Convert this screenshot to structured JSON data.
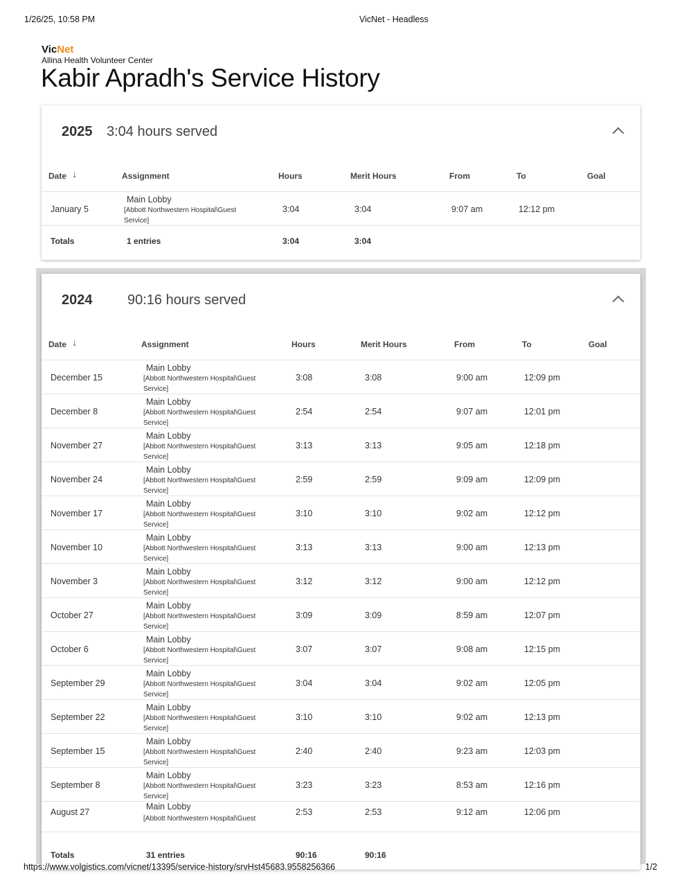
{
  "print": {
    "datetime": "1/26/25, 10:58 PM",
    "page_title": "VicNet - Headless",
    "url": "https://www.volgistics.com/vicnet/13395/service-history/srvHst45683.9558256366",
    "page_num": "1/2"
  },
  "brand": {
    "vic": "Vic",
    "net": "Net",
    "accent": "#f28c13",
    "org": "Allina Health Volunteer Center"
  },
  "title": "Kabir Apradh's Service History",
  "columns": {
    "date": "Date",
    "assignment": "Assignment",
    "hours": "Hours",
    "merit": "Merit Hours",
    "from": "From",
    "to": "To",
    "goal": "Goal"
  },
  "years": [
    {
      "year": "2025",
      "served": "3:04 hours served",
      "rows": [
        {
          "date": "January 5",
          "assignment": "Main Lobby",
          "location": "[Abbott Northwestern Hospital\\Guest Service]",
          "hours": "3:04",
          "merit": "3:04",
          "from": "9:07 am",
          "to": "12:12 pm"
        }
      ],
      "totals": {
        "label": "Totals",
        "entries": "1 entries",
        "hours": "3:04",
        "merit": "3:04"
      }
    },
    {
      "year": "2024",
      "served": "90:16 hours served",
      "rows": [
        {
          "date": "December 15",
          "assignment": "Main Lobby",
          "location": "[Abbott Northwestern Hospital\\Guest Service]",
          "hours": "3:08",
          "merit": "3:08",
          "from": "9:00 am",
          "to": "12:09 pm"
        },
        {
          "date": "December 8",
          "assignment": "Main Lobby",
          "location": "[Abbott Northwestern Hospital\\Guest Service]",
          "hours": "2:54",
          "merit": "2:54",
          "from": "9:07 am",
          "to": "12:01 pm"
        },
        {
          "date": "November 27",
          "assignment": "Main Lobby",
          "location": "[Abbott Northwestern Hospital\\Guest Service]",
          "hours": "3:13",
          "merit": "3:13",
          "from": "9:05 am",
          "to": "12:18 pm"
        },
        {
          "date": "November 24",
          "assignment": "Main Lobby",
          "location": "[Abbott Northwestern Hospital\\Guest Service]",
          "hours": "2:59",
          "merit": "2:59",
          "from": "9:09 am",
          "to": "12:09 pm"
        },
        {
          "date": "November 17",
          "assignment": "Main Lobby",
          "location": "[Abbott Northwestern Hospital\\Guest Service]",
          "hours": "3:10",
          "merit": "3:10",
          "from": "9:02 am",
          "to": "12:12 pm"
        },
        {
          "date": "November 10",
          "assignment": "Main Lobby",
          "location": "[Abbott Northwestern Hospital\\Guest Service]",
          "hours": "3:13",
          "merit": "3:13",
          "from": "9:00 am",
          "to": "12:13 pm"
        },
        {
          "date": "November 3",
          "assignment": "Main Lobby",
          "location": "[Abbott Northwestern Hospital\\Guest Service]",
          "hours": "3:12",
          "merit": "3:12",
          "from": "9:00 am",
          "to": "12:12 pm"
        },
        {
          "date": "October 27",
          "assignment": "Main Lobby",
          "location": "[Abbott Northwestern Hospital\\Guest Service]",
          "hours": "3:09",
          "merit": "3:09",
          "from": "8:59 am",
          "to": "12:07 pm"
        },
        {
          "date": "October 6",
          "assignment": "Main Lobby",
          "location": "[Abbott Northwestern Hospital\\Guest Service]",
          "hours": "3:07",
          "merit": "3:07",
          "from": "9:08 am",
          "to": "12:15 pm"
        },
        {
          "date": "September 29",
          "assignment": "Main Lobby",
          "location": "[Abbott Northwestern Hospital\\Guest Service]",
          "hours": "3:04",
          "merit": "3:04",
          "from": "9:02 am",
          "to": "12:05 pm"
        },
        {
          "date": "September 22",
          "assignment": "Main Lobby",
          "location": "[Abbott Northwestern Hospital\\Guest Service]",
          "hours": "3:10",
          "merit": "3:10",
          "from": "9:02 am",
          "to": "12:13 pm"
        },
        {
          "date": "September 15",
          "assignment": "Main Lobby",
          "location": "[Abbott Northwestern Hospital\\Guest Service]",
          "hours": "2:40",
          "merit": "2:40",
          "from": "9:23 am",
          "to": "12:03 pm"
        },
        {
          "date": "September 8",
          "assignment": "Main Lobby",
          "location": "[Abbott Northwestern Hospital\\Guest Service]",
          "hours": "3:23",
          "merit": "3:23",
          "from": "8:53 am",
          "to": "12:16 pm"
        },
        {
          "date": "August 27",
          "assignment": "Main Lobby",
          "location": "[Abbott Northwestern Hospital\\Guest",
          "hours": "2:53",
          "merit": "2:53",
          "from": "9:12 am",
          "to": "12:06 pm"
        }
      ],
      "totals": {
        "label": "Totals",
        "entries": "31 entries",
        "hours": "90:16",
        "merit": "90:16"
      }
    }
  ]
}
